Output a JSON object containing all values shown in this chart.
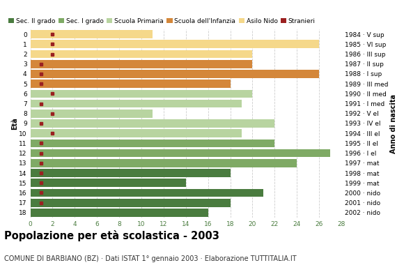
{
  "title": "Popolazione per età scolastica - 2003",
  "subtitle": "COMUNE DI BARBIANO (BZ) · Dati ISTAT 1° gennaio 2003 · Elaborazione TUTTITALIA.IT",
  "ylabel_left": "Età",
  "ylabel_right": "Anno di nascita",
  "xlim": [
    0,
    28
  ],
  "xticks": [
    0,
    2,
    4,
    6,
    8,
    10,
    12,
    14,
    16,
    18,
    20,
    22,
    24,
    26,
    28
  ],
  "ages": [
    18,
    17,
    16,
    15,
    14,
    13,
    12,
    11,
    10,
    9,
    8,
    7,
    6,
    5,
    4,
    3,
    2,
    1,
    0
  ],
  "right_labels": [
    "1984 · V sup",
    "1985 · VI sup",
    "1986 · III sup",
    "1987 · II sup",
    "1988 · I sup",
    "1989 · III med",
    "1990 · II med",
    "1991 · I med",
    "1992 · V el",
    "1993 · IV el",
    "1994 · III el",
    "1995 · II el",
    "1996 · I el",
    "1997 · mat",
    "1998 · mat",
    "1999 · mat",
    "2000 · nido",
    "2001 · nido",
    "2002 · nido"
  ],
  "bar_values": [
    16,
    18,
    21,
    14,
    18,
    24,
    27,
    22,
    19,
    22,
    11,
    19,
    20,
    18,
    26,
    20,
    20,
    26,
    11
  ],
  "stranieri_values": [
    0,
    1,
    1,
    1,
    1,
    1,
    1,
    1,
    2,
    1,
    2,
    1,
    2,
    1,
    1,
    1,
    2,
    2,
    2
  ],
  "age_colors": {
    "18": "#4a7c3f",
    "17": "#4a7c3f",
    "16": "#4a7c3f",
    "15": "#4a7c3f",
    "14": "#4a7c3f",
    "13": "#7faa65",
    "12": "#7faa65",
    "11": "#7faa65",
    "10": "#b8d4a0",
    "9": "#b8d4a0",
    "8": "#b8d4a0",
    "7": "#b8d4a0",
    "6": "#b8d4a0",
    "5": "#d4873a",
    "4": "#d4873a",
    "3": "#d4873a",
    "2": "#f5d88a",
    "1": "#f5d88a",
    "0": "#f5d88a"
  },
  "legend_labels": [
    "Sec. II grado",
    "Sec. I grado",
    "Scuola Primaria",
    "Scuola dell'Infanzia",
    "Asilo Nido",
    "Stranieri"
  ],
  "legend_colors": [
    "#4a7c3f",
    "#7faa65",
    "#b8d4a0",
    "#d4873a",
    "#f5d88a",
    "#9b2020"
  ],
  "stranieri_color": "#9b2020",
  "grid_color": "#cccccc",
  "bg_color": "#ffffff",
  "bar_height": 0.82,
  "title_fontsize": 10.5,
  "subtitle_fontsize": 7,
  "tick_fontsize": 6.5,
  "legend_fontsize": 6.5,
  "axis_label_fontsize": 7
}
